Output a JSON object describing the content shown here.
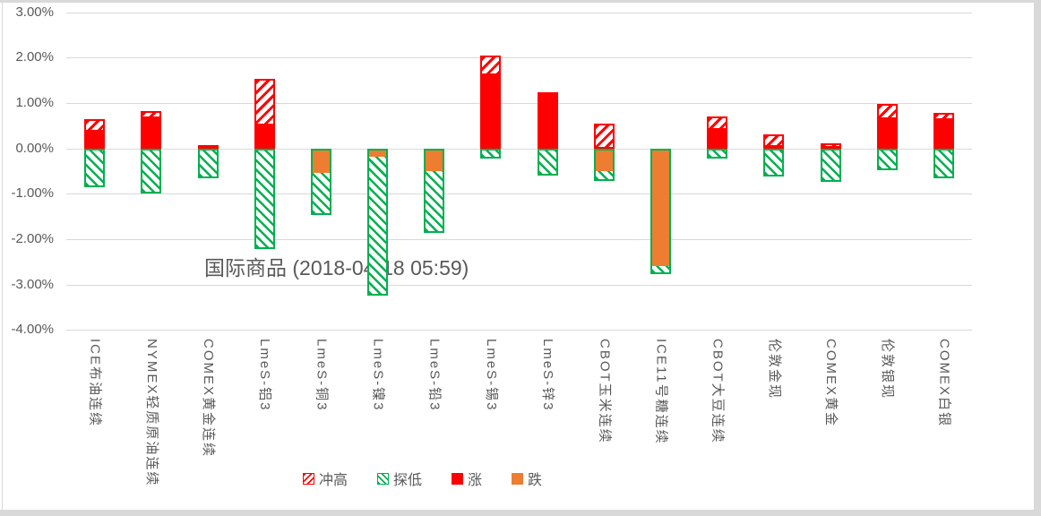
{
  "chart_data": {
    "type": "bar",
    "title": "国际商品 (2018-04-18 05:59)",
    "categories": [
      "ICE布油连续",
      "NYMEX轻质原油连续",
      "COMEX黄金连续",
      "LmeS-铝3",
      "LmeS-铜3",
      "LmeS-镍3",
      "LmeS-铅3",
      "LmeS-锡3",
      "LmeS-锌3",
      "CBOT玉米连续",
      "ICE11号糖连续",
      "CBOT大豆连续",
      "伦敦金现",
      "COMEX黄金",
      "伦敦银现",
      "COMEX白银"
    ],
    "series": [
      {
        "name": "冲高",
        "role": "high",
        "values": [
          0.65,
          0.82,
          0.08,
          1.53,
          0.02,
          0.03,
          0.02,
          2.04,
          1.23,
          0.54,
          0.03,
          0.71,
          0.31,
          0.12,
          0.97,
          0.79
        ]
      },
      {
        "name": "涨跌",
        "role": "close",
        "values": [
          0.36,
          0.66,
          0.07,
          0.5,
          -0.54,
          -0.18,
          -0.5,
          1.61,
          1.19,
          -0.51,
          -2.59,
          0.41,
          0.03,
          0.02,
          0.64,
          0.63
        ]
      },
      {
        "name": "探低",
        "role": "low",
        "values": [
          -0.85,
          -1.0,
          -0.65,
          -2.22,
          -1.46,
          -3.24,
          -1.86,
          -0.22,
          -0.6,
          -0.71,
          -2.77,
          -0.22,
          -0.62,
          -0.73,
          -0.49,
          -0.65
        ]
      }
    ],
    "yticks": [
      {
        "label": "3.00%",
        "value": 3
      },
      {
        "label": "2.00%",
        "value": 2
      },
      {
        "label": "1.00%",
        "value": 1
      },
      {
        "label": "0.00%",
        "value": 0
      },
      {
        "label": "-1.00%",
        "value": -1
      },
      {
        "label": "-2.00%",
        "value": -2
      },
      {
        "label": "-3.00%",
        "value": -3
      },
      {
        "label": "-4.00%",
        "value": -4
      }
    ],
    "ylim": [
      -4,
      3
    ],
    "grid": true,
    "legend_position": "bottom",
    "legend": [
      {
        "label": "冲高",
        "style": "hatch-red"
      },
      {
        "label": "探低",
        "style": "hatch-green"
      },
      {
        "label": "涨",
        "style": "solid-red"
      },
      {
        "label": "跌",
        "style": "solid-orange"
      }
    ]
  },
  "colors": {
    "rise": "#ff0000",
    "fall": "#ed7d31",
    "probe_low": "#00b050",
    "gridline": "#d9d9d9",
    "axis_text": "#595959",
    "frame": "#d9d9d9",
    "background": "#ffffff"
  }
}
